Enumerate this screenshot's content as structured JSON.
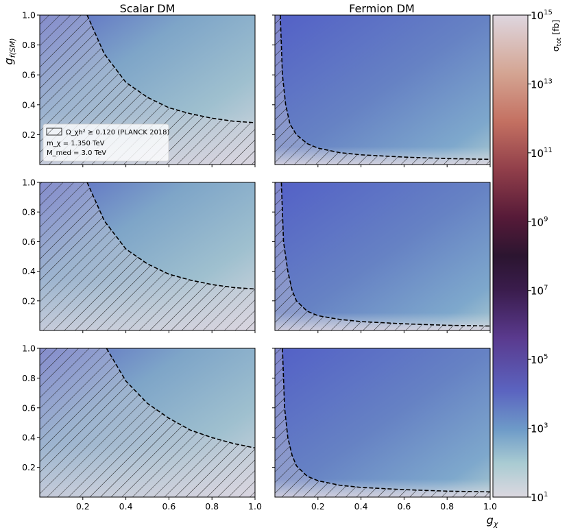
{
  "chart_data": {
    "type": "heatmap",
    "columns": [
      {
        "title": "Scalar DM",
        "kind": "scalar"
      },
      {
        "title": "Fermion DM",
        "kind": "fermion"
      }
    ],
    "rows": 3,
    "xlabel": "g_χ",
    "ylabel": "g_f(SM)",
    "xlim": [
      0.0,
      1.0
    ],
    "ylim": [
      0.0,
      1.0
    ],
    "xticks": [
      0.2,
      0.4,
      0.6,
      0.8,
      1.0
    ],
    "xtick_labels": [
      "0.2",
      "0.4",
      "0.6",
      "0.8",
      "1.0"
    ],
    "yticks": [
      0.2,
      0.4,
      0.6,
      0.8,
      1.0
    ],
    "ytick_labels": [
      "0.2",
      "0.4",
      "0.6",
      "0.8",
      "1.0"
    ],
    "colorbar": {
      "label": "σ_tot [fb]",
      "scale": "log",
      "range": [
        10.0,
        1000000000000000.0
      ],
      "ticks": [
        {
          "exp": 1,
          "label": "10",
          "sup": "1"
        },
        {
          "exp": 3,
          "label": "10",
          "sup": "3"
        },
        {
          "exp": 5,
          "label": "10",
          "sup": "5"
        },
        {
          "exp": 7,
          "label": "10",
          "sup": "7"
        },
        {
          "exp": 9,
          "label": "10",
          "sup": "9"
        },
        {
          "exp": 11,
          "label": "10",
          "sup": "11"
        },
        {
          "exp": 13,
          "label": "10",
          "sup": "13"
        },
        {
          "exp": 15,
          "label": "10",
          "sup": "15"
        }
      ]
    },
    "relic_contours": [
      {
        "row": 1,
        "column": "Scalar DM",
        "points": [
          [
            0.22,
            1.0
          ],
          [
            0.3,
            0.74
          ],
          [
            0.4,
            0.55
          ],
          [
            0.5,
            0.45
          ],
          [
            0.6,
            0.38
          ],
          [
            0.7,
            0.34
          ],
          [
            0.8,
            0.31
          ],
          [
            0.9,
            0.29
          ],
          [
            1.0,
            0.28
          ]
        ]
      },
      {
        "row": 1,
        "column": "Fermion DM",
        "points": [
          [
            0.025,
            1.0
          ],
          [
            0.035,
            0.6
          ],
          [
            0.05,
            0.4
          ],
          [
            0.07,
            0.27
          ],
          [
            0.1,
            0.2
          ],
          [
            0.15,
            0.14
          ],
          [
            0.2,
            0.11
          ],
          [
            0.3,
            0.08
          ],
          [
            0.4,
            0.065
          ],
          [
            0.6,
            0.05
          ],
          [
            0.8,
            0.04
          ],
          [
            1.0,
            0.035
          ]
        ]
      },
      {
        "row": 2,
        "column": "Scalar DM",
        "points": [
          [
            0.22,
            1.0
          ],
          [
            0.3,
            0.74
          ],
          [
            0.4,
            0.55
          ],
          [
            0.5,
            0.45
          ],
          [
            0.6,
            0.38
          ],
          [
            0.7,
            0.34
          ],
          [
            0.8,
            0.31
          ],
          [
            0.9,
            0.29
          ],
          [
            1.0,
            0.28
          ]
        ]
      },
      {
        "row": 2,
        "column": "Fermion DM",
        "points": [
          [
            0.03,
            1.0
          ],
          [
            0.04,
            0.6
          ],
          [
            0.06,
            0.4
          ],
          [
            0.08,
            0.27
          ],
          [
            0.1,
            0.2
          ],
          [
            0.15,
            0.13
          ],
          [
            0.2,
            0.1
          ],
          [
            0.3,
            0.075
          ],
          [
            0.4,
            0.06
          ],
          [
            0.6,
            0.045
          ],
          [
            0.8,
            0.035
          ],
          [
            1.0,
            0.03
          ]
        ]
      },
      {
        "row": 3,
        "column": "Scalar DM",
        "points": [
          [
            0.31,
            1.0
          ],
          [
            0.4,
            0.78
          ],
          [
            0.5,
            0.63
          ],
          [
            0.6,
            0.53
          ],
          [
            0.7,
            0.45
          ],
          [
            0.8,
            0.4
          ],
          [
            0.9,
            0.36
          ],
          [
            1.0,
            0.33
          ]
        ]
      },
      {
        "row": 3,
        "column": "Fermion DM",
        "points": [
          [
            0.035,
            1.0
          ],
          [
            0.045,
            0.6
          ],
          [
            0.06,
            0.4
          ],
          [
            0.08,
            0.28
          ],
          [
            0.1,
            0.21
          ],
          [
            0.15,
            0.14
          ],
          [
            0.2,
            0.11
          ],
          [
            0.3,
            0.08
          ],
          [
            0.4,
            0.065
          ],
          [
            0.6,
            0.05
          ],
          [
            0.8,
            0.04
          ],
          [
            1.0,
            0.035
          ]
        ]
      }
    ],
    "legend": {
      "hatch_label": "Ω_χh² ≥ 0.120 (PLANCK 2018)",
      "lines": [
        "m_χ = 1.350 TeV",
        "M_med = 3.0 TeV"
      ],
      "placement": "lower-left of top-left panel"
    }
  }
}
